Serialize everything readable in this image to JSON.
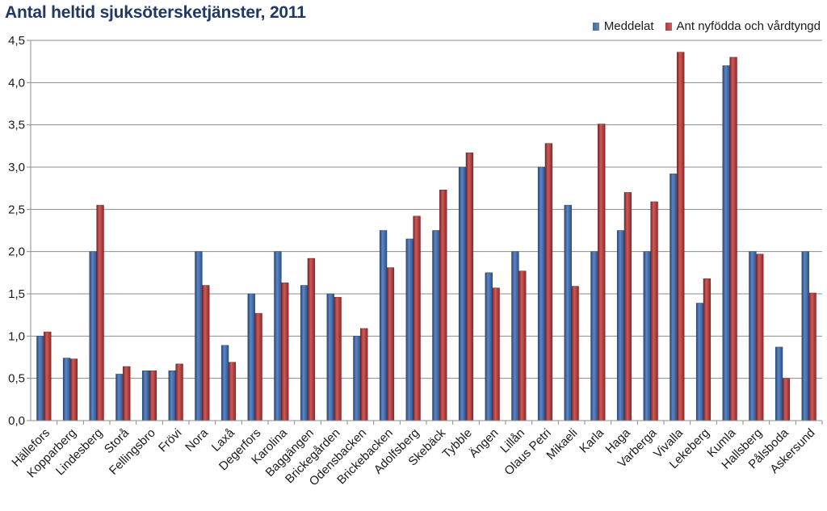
{
  "chart_data": {
    "type": "bar",
    "title": "Antal heltid sjuksötersketjänster, 2011",
    "xlabel": "",
    "ylabel": "",
    "ylim": [
      0,
      4.5
    ],
    "yticks": [
      "0,0",
      "0,5",
      "1,0",
      "1,5",
      "2,0",
      "2,5",
      "3,0",
      "3,5",
      "4,0",
      "4,5"
    ],
    "grid": true,
    "legend_position": "top-right",
    "categories": [
      "Hällefors",
      "Kopparberg",
      "Lindesberg",
      "Storå",
      "Fellingsbro",
      "Frövi",
      "Nora",
      "Laxå",
      "Degerfors",
      "Karolina",
      "Baggängen",
      "Brickegården",
      "Odensbacken",
      "Brickebacken",
      "Adolfsberg",
      "Skebäck",
      "Tybble",
      "Ängen",
      "Lillån",
      "Olaus Petri",
      "Mikaeli",
      "Karla",
      "Haga",
      "Varberga",
      "Vivalla",
      "Lekeberg",
      "Kumla",
      "Hallsberg",
      "Pålsboda",
      "Askersund"
    ],
    "series": [
      {
        "name": "Meddelat",
        "color": "#3f6aa6",
        "values": [
          1.0,
          0.74,
          2.0,
          0.55,
          0.59,
          0.59,
          2.0,
          0.89,
          1.5,
          2.0,
          1.6,
          1.5,
          1.0,
          2.25,
          2.15,
          2.25,
          3.0,
          1.75,
          2.0,
          3.0,
          2.55,
          2.0,
          2.25,
          2.0,
          2.92,
          1.39,
          4.2,
          2.0,
          0.87,
          2.0
        ]
      },
      {
        "name": "Ant nyfödda och vårdtyngd",
        "color": "#b23b3b",
        "values": [
          1.05,
          0.73,
          2.55,
          0.64,
          0.59,
          0.67,
          1.6,
          0.69,
          1.27,
          1.63,
          1.92,
          1.46,
          1.09,
          1.81,
          2.42,
          2.73,
          3.17,
          1.57,
          1.77,
          3.28,
          1.59,
          3.51,
          2.7,
          2.59,
          4.36,
          1.68,
          4.3,
          1.97,
          0.5,
          1.51
        ]
      }
    ]
  }
}
